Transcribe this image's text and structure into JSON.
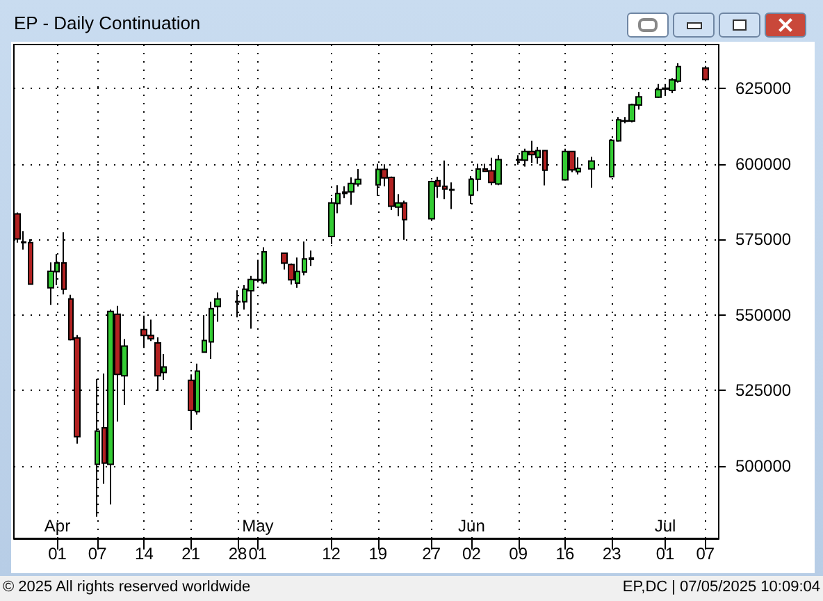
{
  "chart_data": {
    "type": "candlestick",
    "title": "EP - Daily Continuation",
    "x": [
      "2025-03-26",
      "2025-03-27",
      "2025-03-28",
      "2025-03-31",
      "2025-04-01",
      "2025-04-02",
      "2025-04-03",
      "2025-04-04",
      "2025-04-07",
      "2025-04-08",
      "2025-04-09",
      "2025-04-10",
      "2025-04-11",
      "2025-04-14",
      "2025-04-15",
      "2025-04-16",
      "2025-04-17",
      "2025-04-21",
      "2025-04-22",
      "2025-04-23",
      "2025-04-24",
      "2025-04-25",
      "2025-04-28",
      "2025-04-29",
      "2025-04-30",
      "2025-05-01",
      "2025-05-02",
      "2025-05-05",
      "2025-05-06",
      "2025-05-07",
      "2025-05-08",
      "2025-05-09",
      "2025-05-12",
      "2025-05-13",
      "2025-05-14",
      "2025-05-15",
      "2025-05-16",
      "2025-05-19",
      "2025-05-20",
      "2025-05-21",
      "2025-05-22",
      "2025-05-23",
      "2025-05-27",
      "2025-05-28",
      "2025-05-29",
      "2025-05-30",
      "2025-06-02",
      "2025-06-03",
      "2025-06-04",
      "2025-06-05",
      "2025-06-06",
      "2025-06-09",
      "2025-06-10",
      "2025-06-11",
      "2025-06-12",
      "2025-06-13",
      "2025-06-16",
      "2025-06-17",
      "2025-06-18",
      "2025-06-20",
      "2025-06-23",
      "2025-06-24",
      "2025-06-25",
      "2025-06-26",
      "2025-06-27",
      "2025-06-30",
      "2025-07-01",
      "2025-07-02",
      "2025-07-03",
      "2025-07-07"
    ],
    "xlim": [
      "2025-03-25T12:00",
      "2025-07-09"
    ],
    "ohlc": [
      [
        583400,
        583900,
        573900,
        575150
      ],
      [
        573900,
        577750,
        571650,
        574100
      ],
      [
        573900,
        575000,
        560000,
        560150
      ],
      [
        558950,
        567350,
        553300,
        564450
      ],
      [
        564300,
        570100,
        559850,
        567200
      ],
      [
        567200,
        577300,
        556800,
        558500
      ],
      [
        555250,
        556650,
        541500,
        541800
      ],
      [
        542400,
        543300,
        507400,
        509700
      ],
      [
        500500,
        528800,
        483200,
        511500
      ],
      [
        512600,
        530600,
        494100,
        500950
      ],
      [
        500500,
        551750,
        487200,
        551150
      ],
      [
        550200,
        553000,
        514700,
        530300
      ],
      [
        529850,
        541950,
        520200,
        539650
      ],
      [
        545150,
        549750,
        539050,
        543200
      ],
      [
        543200,
        548400,
        541350,
        542100
      ],
      [
        540700,
        542550,
        524800,
        529850
      ],
      [
        530950,
        537050,
        528500,
        532750
      ],
      [
        528350,
        530300,
        512400,
        518400
      ],
      [
        517950,
        533850,
        517000,
        531400
      ],
      [
        537650,
        549900,
        537500,
        541500
      ],
      [
        541050,
        554350,
        535400,
        552050
      ],
      [
        552800,
        557400,
        547750,
        555250
      ],
      [
        554300,
        558150,
        549150,
        554400
      ],
      [
        554350,
        559850,
        551750,
        558500
      ],
      [
        558000,
        562900,
        545450,
        561700
      ],
      [
        561700,
        568250,
        560750,
        561500
      ],
      [
        560600,
        572400,
        560150,
        570850
      ],
      [
        570400,
        570500,
        565000,
        567150
      ],
      [
        566650,
        567000,
        560050,
        561600
      ],
      [
        560500,
        569000,
        558950,
        564350
      ],
      [
        564200,
        574250,
        563100,
        568500
      ],
      [
        568800,
        571300,
        566200,
        568350
      ],
      [
        575950,
        588600,
        573450,
        587050
      ],
      [
        586900,
        592900,
        583650,
        590150
      ],
      [
        590150,
        592600,
        588600,
        590600
      ],
      [
        590750,
        595500,
        586400,
        593500
      ],
      [
        593350,
        598300,
        592450,
        594900
      ],
      [
        593050,
        600000,
        589350,
        598150
      ],
      [
        598150,
        599850,
        592600,
        595350
      ],
      [
        595500,
        595800,
        584700,
        585950
      ],
      [
        585650,
        589950,
        582700,
        587050
      ],
      [
        587050,
        587800,
        574850,
        581500
      ],
      [
        581800,
        594450,
        581200,
        594150
      ],
      [
        594450,
        595700,
        588750,
        592600
      ],
      [
        592600,
        601100,
        588300,
        591650
      ],
      [
        591300,
        593850,
        585050,
        591500
      ],
      [
        589650,
        596000,
        586750,
        594900
      ],
      [
        594900,
        600000,
        590900,
        598300
      ],
      [
        598300,
        600000,
        597400,
        597550
      ],
      [
        597700,
        602000,
        592900,
        593850
      ],
      [
        593350,
        602800,
        592900,
        601400
      ],
      [
        601250,
        602800,
        599700,
        601400
      ],
      [
        601200,
        605000,
        599100,
        604100
      ],
      [
        604100,
        607600,
        600300,
        603050
      ],
      [
        602150,
        605600,
        600000,
        604400
      ],
      [
        604400,
        604400,
        592850,
        597850
      ],
      [
        594700,
        605000,
        594400,
        604100
      ],
      [
        604100,
        604100,
        597250,
        598000
      ],
      [
        597400,
        602150,
        596500,
        598500
      ],
      [
        598350,
        602300,
        592100,
        600900
      ],
      [
        595750,
        608200,
        595450,
        607750
      ],
      [
        607600,
        615500,
        607300,
        614600
      ],
      [
        614100,
        615500,
        613400,
        614300
      ],
      [
        614150,
        619900,
        613700,
        619600
      ],
      [
        619450,
        623850,
        617950,
        622200
      ],
      [
        622050,
        626450,
        621750,
        624600
      ],
      [
        624750,
        626450,
        622500,
        625050
      ],
      [
        624300,
        628400,
        623400,
        627800
      ],
      [
        627350,
        633300,
        626900,
        632200
      ],
      [
        631750,
        632400,
        627350,
        627950
      ]
    ],
    "colors": [
      "#b22222",
      "#33cc33",
      "#b22222",
      "#33cc33",
      "#33cc33",
      "#b22222",
      "#b22222",
      "#b22222",
      "#33cc33",
      "#b22222",
      "#33cc33",
      "#b22222",
      "#33cc33",
      "#b22222",
      "#b22222",
      "#b22222",
      "#33cc33",
      "#b22222",
      "#33cc33",
      "#33cc33",
      "#33cc33",
      "#33cc33",
      "#33cc33",
      "#33cc33",
      "#33cc33",
      "#b22222",
      "#33cc33",
      "#b22222",
      "#b22222",
      "#33cc33",
      "#33cc33",
      "#b22222",
      "#33cc33",
      "#33cc33",
      "#33cc33",
      "#33cc33",
      "#33cc33",
      "#33cc33",
      "#b22222",
      "#b22222",
      "#33cc33",
      "#b22222",
      "#33cc33",
      "#b22222",
      "#b22222",
      "#33cc33",
      "#33cc33",
      "#33cc33",
      "#b22222",
      "#b22222",
      "#33cc33",
      "#33cc33",
      "#33cc33",
      "#b22222",
      "#33cc33",
      "#b22222",
      "#33cc33",
      "#b22222",
      "#33cc33",
      "#33cc33",
      "#33cc33",
      "#33cc33",
      "#33cc33",
      "#33cc33",
      "#33cc33",
      "#33cc33",
      "#33cc33",
      "#33cc33",
      "#33cc33",
      "#b22222"
    ],
    "ylim": [
      476000,
      639500
    ],
    "yticks": [
      500000,
      525000,
      550000,
      575000,
      600000,
      625000
    ],
    "xticks": [
      {
        "value": "2025-04-01",
        "label": "01"
      },
      {
        "value": "2025-04-07",
        "label": "07"
      },
      {
        "value": "2025-04-14",
        "label": "14"
      },
      {
        "value": "2025-04-21",
        "label": "21"
      },
      {
        "value": "2025-04-28",
        "label": "28"
      },
      {
        "value": "2025-05-01",
        "label": "01"
      },
      {
        "value": "2025-05-12",
        "label": "12"
      },
      {
        "value": "2025-05-19",
        "label": "19"
      },
      {
        "value": "2025-05-27",
        "label": "27"
      },
      {
        "value": "2025-06-02",
        "label": "02"
      },
      {
        "value": "2025-06-09",
        "label": "09"
      },
      {
        "value": "2025-06-16",
        "label": "16"
      },
      {
        "value": "2025-06-23",
        "label": "23"
      },
      {
        "value": "2025-07-01",
        "label": "01"
      },
      {
        "value": "2025-07-07",
        "label": "07"
      }
    ],
    "grid": true,
    "x2lim": [
      "2025-03-25T12:00",
      "2025-07-09"
    ],
    "x2ticks": [
      {
        "value": "2025-04-01",
        "label": "Apr"
      },
      {
        "value": "2025-05-01",
        "label": "May"
      },
      {
        "value": "2025-06-02",
        "label": "Jun"
      },
      {
        "value": "2025-07-01",
        "label": "Jul"
      }
    ],
    "annotations": [
      "© 2025 All rights reserved worldwide",
      "EP,DC | 07/05/2025 10:09:04"
    ]
  }
}
